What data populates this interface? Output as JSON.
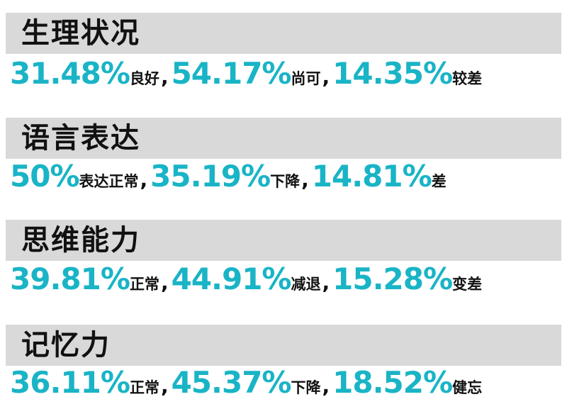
{
  "sections": [
    {
      "title": "生理状况",
      "stats": [
        {
          "value": "31.48%",
          "label": "良好"
        },
        {
          "value": "54.17%",
          "label": "尚可"
        },
        {
          "value": "14.35%",
          "label": "较差"
        }
      ]
    },
    {
      "title": "语言表达",
      "stats": [
        {
          "value": "50%",
          "label": "表达正常"
        },
        {
          "value": "35.19%",
          "label": "下降"
        },
        {
          "value": "14.81%",
          "label": "差"
        }
      ]
    },
    {
      "title": "思维能力",
      "stats": [
        {
          "value": "39.81%",
          "label": "正常"
        },
        {
          "value": "44.91%",
          "label": "减退"
        },
        {
          "value": "15.28%",
          "label": "变差"
        }
      ]
    },
    {
      "title": "记忆力",
      "stats": [
        {
          "value": "36.11%",
          "label": "正常"
        },
        {
          "value": "45.37%",
          "label": "下降"
        },
        {
          "value": "18.52%",
          "label": "健忘"
        }
      ]
    }
  ],
  "separator": ",",
  "colors": {
    "header_bg": "#d9d9d9",
    "percent": "#19b4c6",
    "text": "#111111"
  }
}
